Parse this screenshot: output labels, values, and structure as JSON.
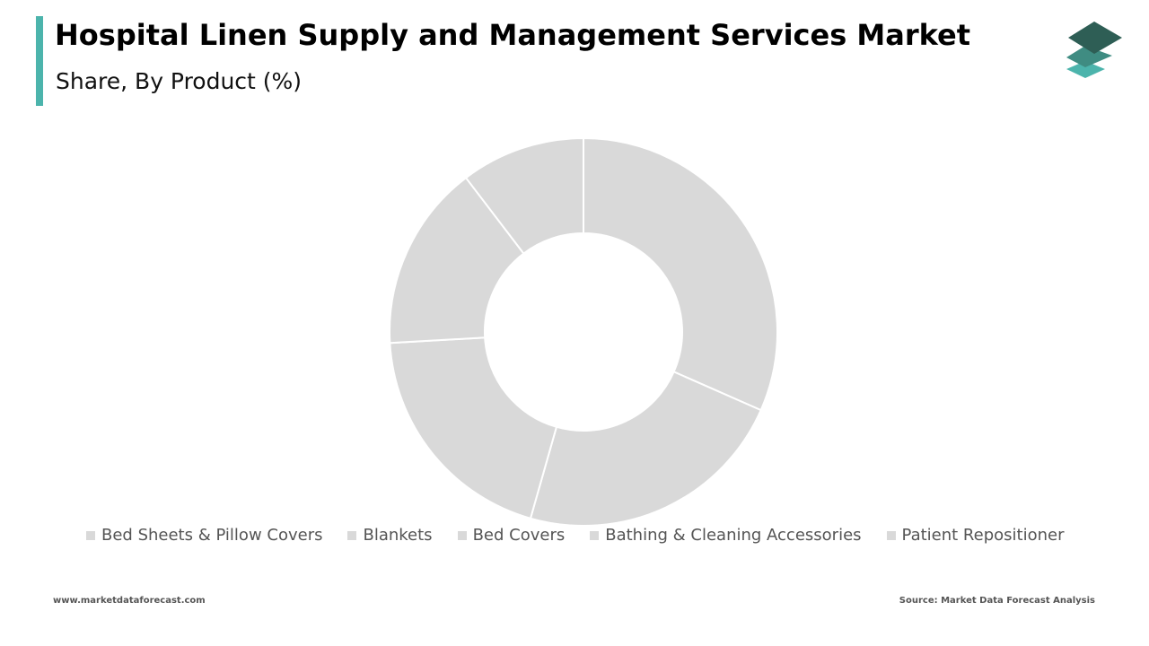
{
  "header": {
    "title": "Hospital Linen Supply and Management Services Market",
    "subtitle": "Share, By Product (%)",
    "accent_color": "#4cb4ac"
  },
  "logo": {
    "icon": "stacked-layers-icon",
    "colors": [
      "#2e5e55",
      "#3f8c82",
      "#4cb4ac"
    ]
  },
  "chart_data": {
    "type": "pie",
    "donut": true,
    "categories": [
      "Bed Sheets & Pillow Covers",
      "Blankets",
      "Bed Covers",
      "Bathing & Cleaning Accessories",
      "Patient Repositioner"
    ],
    "values": [
      30.5,
      22,
      19,
      15,
      10
    ],
    "colors": [
      "#d9d9d9",
      "#d9d9d9",
      "#d9d9d9",
      "#d9d9d9",
      "#d9d9d9"
    ],
    "separator_color": "#ffffff",
    "legend_position": "bottom"
  },
  "footer": {
    "website": "www.marketdataforecast.com",
    "source": "Source: Market Data Forecast Analysis"
  }
}
